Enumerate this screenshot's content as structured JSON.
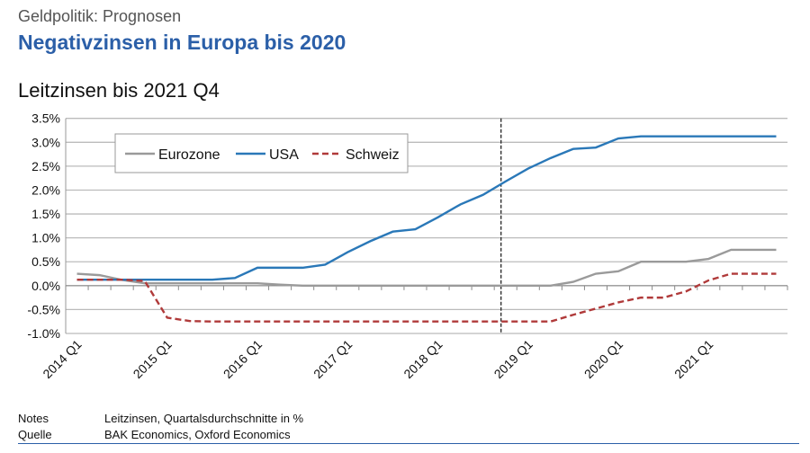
{
  "header": {
    "kicker": "Geldpolitik: Prognosen",
    "headline": "Negativzinsen in Europa bis 2020"
  },
  "chart_data": {
    "type": "line",
    "title": "Leitzinsen bis 2021 Q4",
    "x": [
      "2014 Q1",
      "2014 Q2",
      "2014 Q3",
      "2014 Q4",
      "2015 Q1",
      "2015 Q2",
      "2015 Q3",
      "2015 Q4",
      "2016 Q1",
      "2016 Q2",
      "2016 Q3",
      "2016 Q4",
      "2017 Q1",
      "2017 Q2",
      "2017 Q3",
      "2017 Q4",
      "2018 Q1",
      "2018 Q2",
      "2018 Q3",
      "2018 Q4",
      "2019 Q1",
      "2019 Q2",
      "2019 Q3",
      "2019 Q4",
      "2020 Q1",
      "2020 Q2",
      "2020 Q3",
      "2020 Q4",
      "2021 Q1",
      "2021 Q2",
      "2021 Q3",
      "2021 Q4"
    ],
    "x_tick_labels": [
      "2014 Q1",
      "2015 Q1",
      "2016 Q1",
      "2017 Q1",
      "2018 Q1",
      "2019 Q1",
      "2020 Q1",
      "2021 Q1"
    ],
    "y_tick_labels": [
      "3.5%",
      "3.0%",
      "2.5%",
      "2.0%",
      "1.5%",
      "1.0%",
      "0.5%",
      "0.0%",
      "-0.5%",
      "-1.0%"
    ],
    "ylim": [
      -1.0,
      3.5
    ],
    "grid": true,
    "legend_position": "top-left",
    "forecast_marker": "2018 Q4",
    "series": [
      {
        "name": "Eurozone",
        "color": "#9a9a9a",
        "style": "solid",
        "values": [
          0.25,
          0.22,
          0.12,
          0.05,
          0.05,
          0.05,
          0.05,
          0.05,
          0.05,
          0.02,
          0,
          0,
          0,
          0,
          0,
          0,
          0,
          0,
          0,
          0,
          0,
          0,
          0.08,
          0.25,
          0.3,
          0.5,
          0.5,
          0.5,
          0.56,
          0.75,
          0.75,
          0.75
        ]
      },
      {
        "name": "USA",
        "color": "#2a78b8",
        "style": "solid",
        "values": [
          0.125,
          0.125,
          0.125,
          0.125,
          0.125,
          0.125,
          0.125,
          0.16,
          0.375,
          0.375,
          0.375,
          0.44,
          0.7,
          0.93,
          1.13,
          1.18,
          1.43,
          1.7,
          1.9,
          2.18,
          2.45,
          2.67,
          2.86,
          2.89,
          3.08,
          3.125,
          3.125,
          3.125,
          3.125,
          3.125,
          3.125,
          3.125
        ]
      },
      {
        "name": "Schweiz",
        "color": "#b03a3a",
        "style": "dashed",
        "values": [
          0.125,
          0.125,
          0.125,
          0.1,
          -0.67,
          -0.74,
          -0.75,
          -0.75,
          -0.75,
          -0.75,
          -0.75,
          -0.75,
          -0.75,
          -0.75,
          -0.75,
          -0.75,
          -0.75,
          -0.75,
          -0.75,
          -0.75,
          -0.75,
          -0.75,
          -0.61,
          -0.48,
          -0.35,
          -0.25,
          -0.25,
          -0.12,
          0.11,
          0.25,
          0.25,
          0.25
        ]
      }
    ]
  },
  "footer": {
    "notes_label": "Notes",
    "notes": "Leitzinsen, Quartalsdurchschnitte in %",
    "source_label": "Quelle",
    "source": "BAK Economics, Oxford Economics"
  }
}
